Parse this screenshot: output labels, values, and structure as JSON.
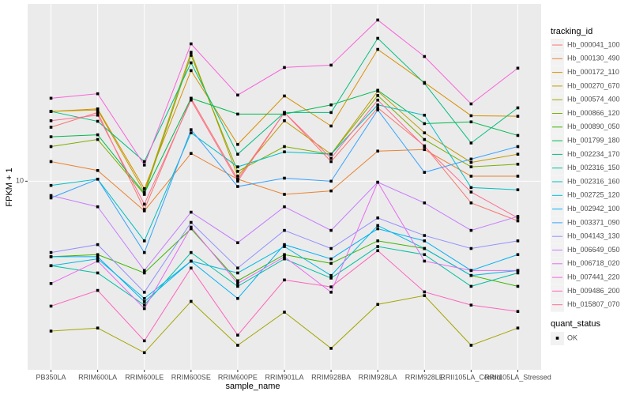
{
  "chart_data": {
    "type": "line",
    "x_label": "sample_name",
    "y_label": "FPKM + 1",
    "categories": [
      "PB350LA",
      "RRIM600LA",
      "RRIM600LE",
      "RRIM600SE",
      "RRIM600PE",
      "RRIM901LA",
      "RRIM928BA",
      "RRIM928LA",
      "RRIM928LE",
      "RRII105LA_Control",
      "RRII105LA_Stressed"
    ],
    "log_y": true,
    "ylim": [
      1.6,
      56
    ],
    "yticks": [
      10
    ],
    "grid": true,
    "legend_title": "tracking_id",
    "shape_legend": {
      "title": "quant_status",
      "labels": [
        "OK"
      ]
    },
    "point_color": "#000000",
    "series": [
      {
        "name": "Hb_000041_100",
        "color": "#F8766D",
        "values": [
          16.9,
          19.5,
          7.6,
          22.4,
          10.2,
          19.5,
          12.1,
          20.4,
          14.1,
          8.1,
          6.8
        ]
      },
      {
        "name": "Hb_000130_490",
        "color": "#EA8331",
        "values": [
          12.1,
          11.1,
          7.5,
          13.1,
          10.2,
          8.8,
          9.1,
          13.4,
          13.6,
          10.5,
          10.5
        ]
      },
      {
        "name": "Hb_000172_110",
        "color": "#D89000",
        "values": [
          19.7,
          20.2,
          9.3,
          29.3,
          14.3,
          22.9,
          17.1,
          36.0,
          26.1,
          18.9,
          18.8
        ]
      },
      {
        "name": "Hb_000270_670",
        "color": "#C09B00",
        "values": [
          19.7,
          20.0,
          9.0,
          35.0,
          10.5,
          18.0,
          13.0,
          24.0,
          16.0,
          12.0,
          13.0
        ]
      },
      {
        "name": "Hb_000574_400",
        "color": "#A3A500",
        "values": [
          2.33,
          2.4,
          1.89,
          3.11,
          2.03,
          2.8,
          1.97,
          3.02,
          3.29,
          2.03,
          2.4
        ]
      },
      {
        "name": "Hb_000866_120",
        "color": "#7CAE00",
        "values": [
          14.0,
          15.0,
          8.8,
          34.0,
          11.0,
          14.0,
          13.0,
          23.0,
          15.0,
          11.5,
          11.8
        ]
      },
      {
        "name": "Hb_000890_050",
        "color": "#39B600",
        "values": [
          4.8,
          4.9,
          4.1,
          6.3,
          3.8,
          4.9,
          4.5,
          5.6,
          5.2,
          4.0,
          3.6
        ]
      },
      {
        "name": "Hb_001799_180",
        "color": "#00BB4E",
        "values": [
          15.4,
          15.7,
          8.9,
          22.4,
          19.2,
          19.2,
          21.0,
          24.2,
          17.5,
          17.8,
          15.6
        ]
      },
      {
        "name": "Hb_002234_170",
        "color": "#00BF7D",
        "values": [
          19.7,
          17.9,
          12.1,
          31.6,
          13.0,
          19.5,
          19.5,
          40.1,
          25.9,
          14.5,
          20.4
        ]
      },
      {
        "name": "Hb_002316_150",
        "color": "#00C1A3",
        "values": [
          4.4,
          4.1,
          3.0,
          5.0,
          3.6,
          4.7,
          3.9,
          5.3,
          4.9,
          3.6,
          4.1
        ]
      },
      {
        "name": "Hb_002316_160",
        "color": "#00BFC4",
        "values": [
          9.6,
          10.2,
          5.6,
          16.0,
          11.5,
          13.3,
          13.0,
          21.0,
          19.0,
          9.4,
          9.2
        ]
      },
      {
        "name": "Hb_002725_120",
        "color": "#00BAE0",
        "values": [
          4.4,
          4.7,
          3.2,
          4.6,
          4.1,
          5.3,
          4.0,
          6.5,
          5.2,
          4.0,
          4.2
        ]
      },
      {
        "name": "Hb_002942_100",
        "color": "#00B0F6",
        "values": [
          4.8,
          4.8,
          3.1,
          4.6,
          3.2,
          5.4,
          4.7,
          6.3,
          5.6,
          4.2,
          4.9
        ]
      },
      {
        "name": "Hb_003371_090",
        "color": "#35A2FF",
        "values": [
          8.5,
          10.2,
          5.0,
          16.5,
          9.5,
          10.3,
          10.0,
          20.0,
          10.9,
          12.4,
          14.0
        ]
      },
      {
        "name": "Hb_004143_130",
        "color": "#9590FF",
        "values": [
          5.0,
          5.4,
          3.4,
          6.7,
          4.3,
          6.2,
          5.2,
          7.0,
          5.9,
          5.2,
          5.6
        ]
      },
      {
        "name": "Hb_006649_050",
        "color": "#C77CFF",
        "values": [
          8.7,
          7.8,
          4.2,
          7.4,
          5.5,
          7.8,
          6.2,
          9.9,
          8.1,
          6.2,
          7.1
        ]
      },
      {
        "name": "Hb_006718_020",
        "color": "#E76BF3",
        "values": [
          3.7,
          4.6,
          2.9,
          6.4,
          3.7,
          4.8,
          3.4,
          9.9,
          4.6,
          4.2,
          4.2
        ]
      },
      {
        "name": "Hb_007441_220",
        "color": "#FA62DB",
        "values": [
          22.4,
          23.4,
          11.7,
          38.0,
          23.1,
          30.2,
          30.9,
          47.9,
          33.6,
          21.2,
          30.0
        ]
      },
      {
        "name": "Hb_009486_200",
        "color": "#FF62BC",
        "values": [
          2.97,
          3.46,
          2.12,
          4.3,
          2.24,
          3.83,
          3.58,
          5.09,
          3.41,
          3.0,
          2.82
        ]
      },
      {
        "name": "Hb_015807_070",
        "color": "#FF6C91",
        "values": [
          18.0,
          19.0,
          8.0,
          22.0,
          10.0,
          19.5,
          12.5,
          22.0,
          14.0,
          9.0,
          7.0
        ]
      }
    ]
  }
}
